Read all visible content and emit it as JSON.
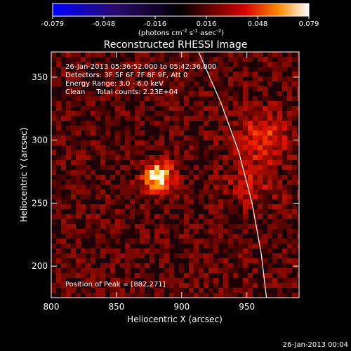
{
  "chart_data": {
    "type": "heatmap",
    "title": "Reconstructed RHESSI Image",
    "xlabel": "Heliocentric X (arcsec)",
    "ylabel": "Heliocentric Y (arcsec)",
    "xlim": [
      800,
      990
    ],
    "ylim": [
      175,
      370
    ],
    "x_ticks": [
      800,
      850,
      900,
      950
    ],
    "y_ticks": [
      200,
      250,
      300,
      350
    ],
    "colorbar": {
      "min": -0.079,
      "max": 0.079,
      "ticks": [
        "-0.079",
        "-0.048",
        "-0.016",
        "0.016",
        "0.048",
        "0.079"
      ],
      "units_main": "(photons cm",
      "units_sup1": "-2",
      "units_mid1": " s",
      "units_sup2": "-1",
      "units_mid2": " asec",
      "units_sup3": "-2",
      "units_end": ")"
    },
    "annotations": {
      "time_range": "26-Jan-2013 05:36:52.000 to 05:42:36.000",
      "detectors": "Detectors: 3F 5F 6F 7F 8F 9F, Att 0",
      "energy": "Energy Range: 3.0 - 6.0 keV",
      "clean": "Clean     Total counts: 2.23E+04",
      "peak": "Position of Peak = [882,271]"
    },
    "sources": [
      {
        "x": 882,
        "y": 271,
        "value": 0.079
      },
      {
        "x": 962,
        "y": 303,
        "value": 0.035
      },
      {
        "x": 955,
        "y": 265,
        "value": 0.022
      }
    ],
    "limb_curve": [
      [
        913,
        370
      ],
      [
        930,
        330
      ],
      [
        944,
        290
      ],
      [
        954,
        250
      ],
      [
        961,
        210
      ],
      [
        965,
        175
      ]
    ]
  },
  "footer": {
    "timestamp": "26-Jan-2013 00:04"
  }
}
